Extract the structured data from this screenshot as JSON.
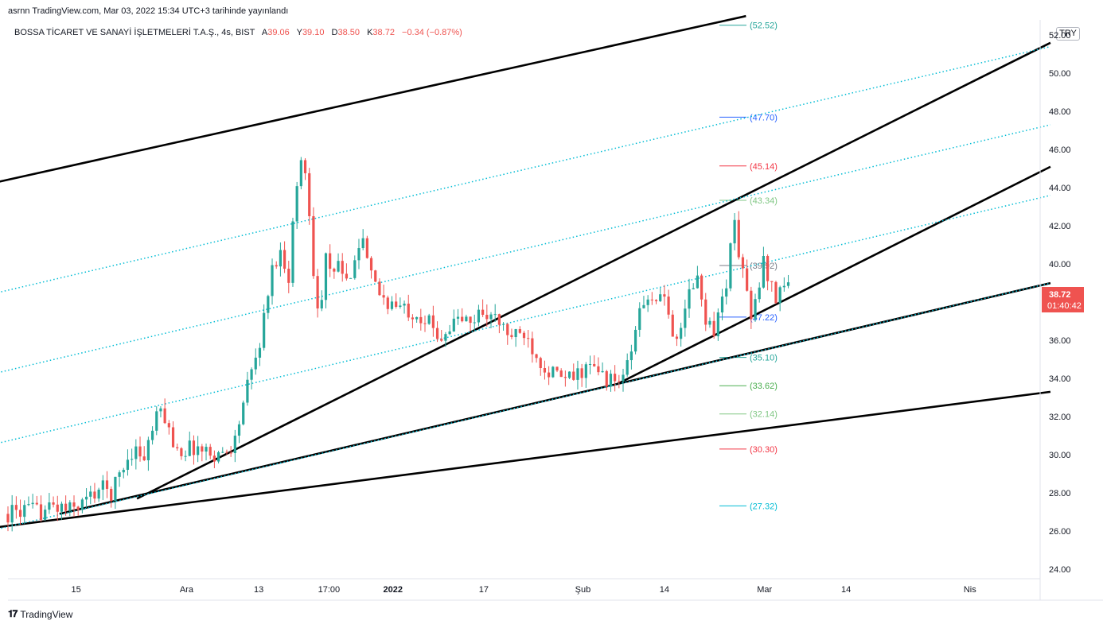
{
  "header": {
    "published_line": "asrnn TradingView.com, Mar 03, 2022 15:34 UTC+3 tarihinde yayınlandı",
    "symbol": "BOSSA TİCARET VE SANAYİ İŞLETMELERİ T.A.Ş., 4s, BIST",
    "ohlc": {
      "open_label": "A",
      "open": "39.06",
      "high_label": "Y",
      "high": "39.10",
      "low_label": "D",
      "low": "38.50",
      "close_label": "K",
      "close": "38.72",
      "change": "−0.34 (−0.87%)"
    },
    "currency": "TRY"
  },
  "price_badge": {
    "price": "38.72",
    "countdown": "01:40:42",
    "color": "#ef5350"
  },
  "footer": {
    "brand": "TradingView",
    "logo": "tv-logo-icon"
  },
  "chart_data": {
    "type": "candlestick",
    "y_axis": {
      "ticks": [
        "24.00",
        "26.00",
        "28.00",
        "30.00",
        "32.00",
        "34.00",
        "36.00",
        "38.00",
        "40.00",
        "42.00",
        "44.00",
        "46.00",
        "48.00",
        "50.00",
        "52.00"
      ],
      "range": [
        23.5,
        52.8
      ],
      "side": "right"
    },
    "x_axis": {
      "ticks": [
        {
          "label": "15",
          "bold": false,
          "t": 0.066
        },
        {
          "label": "Ara",
          "bold": false,
          "t": 0.173
        },
        {
          "label": "13",
          "bold": false,
          "t": 0.243
        },
        {
          "label": "17:00",
          "bold": false,
          "t": 0.311
        },
        {
          "label": "2022",
          "bold": true,
          "t": 0.373
        },
        {
          "label": "17",
          "bold": false,
          "t": 0.461
        },
        {
          "label": "Şub",
          "bold": false,
          "t": 0.557
        },
        {
          "label": "14",
          "bold": false,
          "t": 0.636
        },
        {
          "label": "Mar",
          "bold": false,
          "t": 0.733
        },
        {
          "label": "14",
          "bold": false,
          "t": 0.812
        },
        {
          "label": "Nis",
          "bold": false,
          "t": 0.932
        }
      ]
    },
    "colors": {
      "up": "#26a69a",
      "down": "#ef5350"
    },
    "close_path": [
      [
        0.0,
        26.9
      ],
      [
        0.015,
        27.1
      ],
      [
        0.03,
        27.0
      ],
      [
        0.045,
        27.3
      ],
      [
        0.06,
        27.1
      ],
      [
        0.075,
        27.6
      ],
      [
        0.09,
        28.3
      ],
      [
        0.1,
        28.0
      ],
      [
        0.11,
        29.2
      ],
      [
        0.122,
        30.4
      ],
      [
        0.132,
        29.8
      ],
      [
        0.142,
        31.7
      ],
      [
        0.15,
        32.4
      ],
      [
        0.158,
        30.8
      ],
      [
        0.168,
        30.2
      ],
      [
        0.18,
        30.4
      ],
      [
        0.195,
        30.1
      ],
      [
        0.21,
        30.0
      ],
      [
        0.22,
        30.8
      ],
      [
        0.23,
        33.2
      ],
      [
        0.238,
        34.6
      ],
      [
        0.246,
        36.4
      ],
      [
        0.252,
        38.6
      ],
      [
        0.258,
        40.2
      ],
      [
        0.265,
        40.6
      ],
      [
        0.272,
        39.4
      ],
      [
        0.278,
        43.4
      ],
      [
        0.285,
        45.8
      ],
      [
        0.29,
        44.2
      ],
      [
        0.296,
        39.8
      ],
      [
        0.302,
        36.8
      ],
      [
        0.308,
        40.5
      ],
      [
        0.314,
        38.9
      ],
      [
        0.32,
        40.2
      ],
      [
        0.328,
        38.8
      ],
      [
        0.336,
        40.6
      ],
      [
        0.344,
        41.2
      ],
      [
        0.35,
        39.5
      ],
      [
        0.358,
        38.6
      ],
      [
        0.368,
        38.0
      ],
      [
        0.378,
        37.7
      ],
      [
        0.388,
        37.6
      ],
      [
        0.398,
        37.4
      ],
      [
        0.408,
        36.9
      ],
      [
        0.418,
        36.2
      ],
      [
        0.428,
        36.7
      ],
      [
        0.438,
        37.2
      ],
      [
        0.448,
        36.8
      ],
      [
        0.458,
        37.6
      ],
      [
        0.47,
        37.2
      ],
      [
        0.48,
        36.6
      ],
      [
        0.49,
        36.1
      ],
      [
        0.5,
        36.4
      ],
      [
        0.51,
        35.5
      ],
      [
        0.52,
        34.6
      ],
      [
        0.53,
        34.2
      ],
      [
        0.54,
        33.9
      ],
      [
        0.55,
        34.1
      ],
      [
        0.56,
        34.6
      ],
      [
        0.57,
        34.4
      ],
      [
        0.58,
        34.0
      ],
      [
        0.59,
        33.7
      ],
      [
        0.6,
        34.6
      ],
      [
        0.608,
        36.4
      ],
      [
        0.614,
        38.3
      ],
      [
        0.62,
        37.8
      ],
      [
        0.628,
        38.4
      ],
      [
        0.636,
        37.9
      ],
      [
        0.644,
        36.6
      ],
      [
        0.652,
        36.2
      ],
      [
        0.66,
        38.7
      ],
      [
        0.668,
        39.1
      ],
      [
        0.676,
        37.2
      ],
      [
        0.684,
        36.6
      ],
      [
        0.69,
        37.6
      ],
      [
        0.697,
        39.4
      ],
      [
        0.703,
        42.4
      ],
      [
        0.708,
        40.6
      ],
      [
        0.714,
        39.3
      ],
      [
        0.72,
        36.9
      ],
      [
        0.726,
        38.4
      ],
      [
        0.732,
        40.1
      ],
      [
        0.738,
        39.2
      ],
      [
        0.744,
        38.2
      ],
      [
        0.75,
        39.1
      ],
      [
        0.756,
        38.72
      ]
    ],
    "trend_lines": [
      {
        "name": "upper-channel-line",
        "color": "#000000",
        "p1": [
          -0.01,
          44.3
        ],
        "p2": [
          0.715,
          53.0
        ]
      },
      {
        "name": "steep-trend-line",
        "color": "#000000",
        "p1": [
          0.125,
          27.7
        ],
        "p2": [
          1.01,
          51.6
        ]
      },
      {
        "name": "mid-trend-line",
        "color": "#000000",
        "p1": [
          0.59,
          33.7
        ],
        "p2": [
          1.01,
          45.1
        ]
      },
      {
        "name": "lower-trend-line",
        "color": "#000000",
        "p1": [
          0.05,
          26.9
        ],
        "p2": [
          1.01,
          39.0
        ]
      },
      {
        "name": "base-trend-line",
        "color": "#000000",
        "p1": [
          -0.01,
          26.2
        ],
        "p2": [
          1.01,
          33.3
        ]
      },
      {
        "name": "dotted-channel-1",
        "color": "#00bcd4",
        "p1": [
          -0.01,
          38.5
        ],
        "p2": [
          1.01,
          51.4
        ],
        "dotted": true
      },
      {
        "name": "dotted-channel-2",
        "color": "#00bcd4",
        "p1": [
          -0.01,
          34.3
        ],
        "p2": [
          1.01,
          47.3
        ],
        "dotted": true
      },
      {
        "name": "dotted-channel-3",
        "color": "#00bcd4",
        "p1": [
          -0.01,
          30.6
        ],
        "p2": [
          1.01,
          43.6
        ],
        "dotted": true
      },
      {
        "name": "dotted-channel-4",
        "color": "#00bcd4",
        "p1": [
          -0.01,
          26.1
        ],
        "p2": [
          1.01,
          39.0
        ],
        "dotted": true
      }
    ],
    "fib_levels": [
      {
        "label": "(52.52)",
        "value": 52.52,
        "color": "#26a69a"
      },
      {
        "label": "(47.70)",
        "value": 47.7,
        "color": "#2962ff"
      },
      {
        "label": "(45.14)",
        "value": 45.14,
        "color": "#f23645"
      },
      {
        "label": "(43.34)",
        "value": 43.34,
        "color": "#81c784"
      },
      {
        "label": "(39.92)",
        "value": 39.92,
        "color": "#787b86"
      },
      {
        "label": "(37.22)",
        "value": 37.22,
        "color": "#2962ff"
      },
      {
        "label": "(35.10)",
        "value": 35.1,
        "color": "#26a69a"
      },
      {
        "label": "(33.62)",
        "value": 33.62,
        "color": "#4caf50"
      },
      {
        "label": "(32.14)",
        "value": 32.14,
        "color": "#81c784"
      },
      {
        "label": "(30.30)",
        "value": 30.3,
        "color": "#f23645"
      },
      {
        "label": "(27.32)",
        "value": 27.32,
        "color": "#00bcd4"
      }
    ]
  }
}
